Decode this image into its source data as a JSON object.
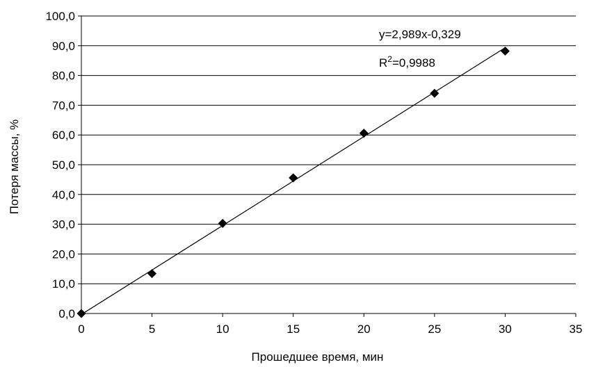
{
  "chart_data": {
    "type": "scatter",
    "xlabel": "Прошедшее время, мин",
    "ylabel": "Потеря массы, %",
    "xlim": [
      0,
      35
    ],
    "ylim": [
      0,
      100
    ],
    "x_ticks": [
      "0",
      "5",
      "10",
      "15",
      "20",
      "25",
      "30",
      "35"
    ],
    "y_ticks": [
      "0,0",
      "10,0",
      "20,0",
      "30,0",
      "40,0",
      "50,0",
      "60,0",
      "70,0",
      "80,0",
      "90,0",
      "100,0"
    ],
    "grid": "horizontal",
    "series": [
      {
        "x": [
          0,
          5,
          10,
          15,
          20,
          25,
          30
        ],
        "y": [
          0.0,
          13.4,
          30.3,
          45.6,
          60.6,
          74.0,
          88.2
        ],
        "marker": "diamond",
        "color": "#000000"
      }
    ],
    "trendline": {
      "slope": 2.989,
      "intercept": -0.329,
      "equation": "y=2,989x-0,329",
      "r2_prefix": "R",
      "r2_sup": "2",
      "r2_value": "=0,9988"
    }
  }
}
